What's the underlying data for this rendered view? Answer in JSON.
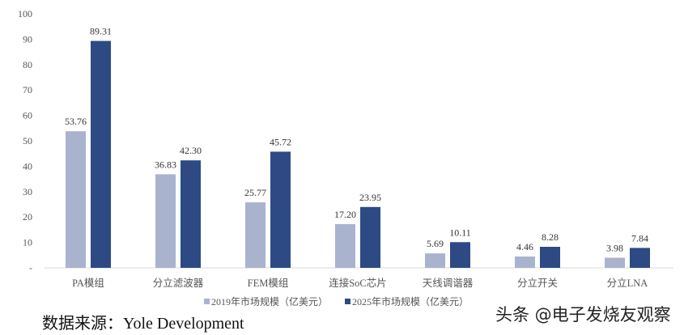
{
  "chart_data": {
    "type": "bar",
    "categories": [
      "PA模组",
      "分立滤波器",
      "FEM模组",
      "连接SoC芯片",
      "天线调谐器",
      "分立开关",
      "分立LNA"
    ],
    "series": [
      {
        "name": "2019年市场规模（亿美元）",
        "values": [
          53.76,
          36.83,
          25.77,
          17.2,
          5.69,
          4.46,
          3.98
        ],
        "labels": [
          "53.76",
          "36.83",
          "25.77",
          "17.20",
          "5.69",
          "4.46",
          "3.98"
        ],
        "color": "#a9b3cd"
      },
      {
        "name": "2025年市场规模（亿美元）",
        "values": [
          89.31,
          42.3,
          45.72,
          23.95,
          10.11,
          8.28,
          7.84
        ],
        "labels": [
          "89.31",
          "42.30",
          "45.72",
          "23.95",
          "10.11",
          "8.28",
          "7.84"
        ],
        "color": "#2e4a84"
      }
    ],
    "ylim": [
      0,
      100
    ],
    "yticks": [
      "-",
      "10",
      "20",
      "30",
      "40",
      "50",
      "60",
      "70",
      "80",
      "90",
      "100"
    ],
    "grid": false,
    "legend": "bottom"
  },
  "source": "数据来源：Yole Development",
  "watermark": "头条 @电子发烧友观察"
}
